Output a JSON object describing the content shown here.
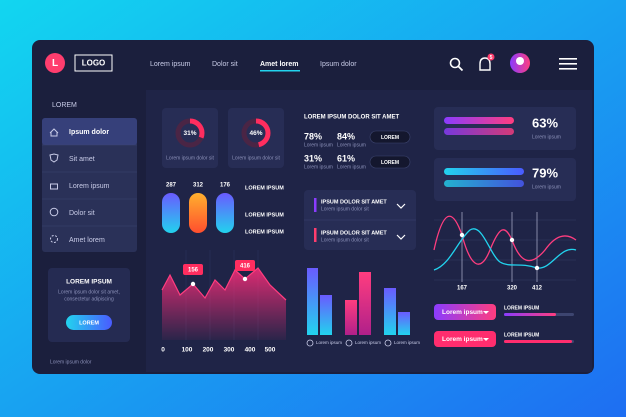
{
  "nav": {
    "logo_letter": "L",
    "logo": "LOGO",
    "links": [
      "Lorem ipsum",
      "Dolor sit",
      "Amet lorem",
      "Ipsum dolor"
    ],
    "notification_count": "5"
  },
  "sidebar": {
    "heading": "LOREM",
    "menu": [
      "Ipsum dolor",
      "Sit amet",
      "Lorem ipsum",
      "Dolor sit",
      "Amet lorem"
    ],
    "card": {
      "title": "LOREM IPSUM",
      "text_lines": [
        "Lorem ipsum dolor sit amet,",
        "consectetur adipiscing"
      ],
      "button": "LOREM"
    },
    "footer": "Lorem ipsum dolor"
  },
  "donuts": [
    {
      "value": "31%",
      "label": "Lorem ipsum dolor sit"
    },
    {
      "value": "46%",
      "label": "Lorem ipsum dolor sit"
    }
  ],
  "bars": {
    "labels": [
      "287",
      "312",
      "176"
    ],
    "legend": [
      "LOREM IPSUM",
      "LOREM IPSUM",
      "LOREM IPSUM"
    ]
  },
  "area_chart": {
    "callouts": [
      "156",
      "416"
    ],
    "xticks": [
      "0",
      "100",
      "200",
      "300",
      "400",
      "500"
    ]
  },
  "stats": {
    "title": "LOREM IPSUM DOLOR SIT AMET",
    "items": [
      {
        "value": "78%",
        "label": "Lorem ipsum"
      },
      {
        "value": "84%",
        "label": "Lorem ipsum"
      },
      {
        "value": "31%",
        "label": "Lorem ipsum"
      },
      {
        "value": "61%",
        "label": "Lorem ipsum"
      }
    ],
    "buttons": [
      "LOREM",
      "LOREM"
    ]
  },
  "list": [
    {
      "title": "IPSUM DOLOR  SIT AMET",
      "subtitle": "Lorem ipsum dolor sit"
    },
    {
      "title": "IPSUM DOLOR  SIT AMET",
      "subtitle": "Lorem ipsum dolor sit"
    }
  ],
  "column_chart": {
    "labels": [
      "Lorem ipsum",
      "Lorem ipsum",
      "Lorem ipsum"
    ]
  },
  "progress": [
    {
      "value": "63%",
      "label": "Lorem ipsum"
    },
    {
      "value": "79%",
      "label": "Lorem ipsum"
    }
  ],
  "line_chart": {
    "xticks": [
      "167",
      "320",
      "412"
    ]
  },
  "dropdowns": [
    {
      "button": "Lorem ipsum",
      "label": "LOREM IPSUM"
    },
    {
      "button": "Lorem ipsum",
      "label": "LOREM IPSUM"
    }
  ]
}
